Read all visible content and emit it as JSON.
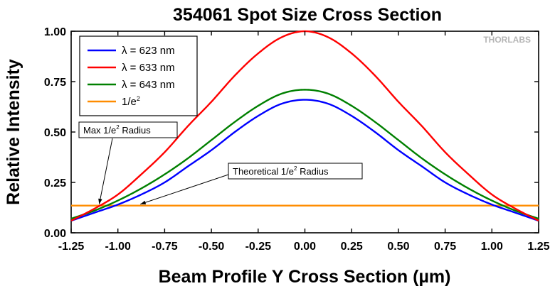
{
  "chart_data": {
    "type": "line",
    "title": "354061 Spot Size Cross Section",
    "xlabel": "Beam Profile Y Cross Section (µm)",
    "ylabel": "Relative Intensity",
    "xlim": [
      -1.25,
      1.25
    ],
    "ylim": [
      0.0,
      1.0
    ],
    "xticks": [
      "-1.25",
      "-1.00",
      "-0.75",
      "-0.50",
      "-0.25",
      "0.00",
      "0.25",
      "0.50",
      "0.75",
      "1.00",
      "1.25"
    ],
    "yticks": [
      "0.00",
      "0.25",
      "0.50",
      "0.75",
      "1.00"
    ],
    "grid": false,
    "legend_position": "top-left",
    "x": [
      -1.25,
      -1.125,
      -1.0,
      -0.875,
      -0.75,
      -0.625,
      -0.5,
      -0.375,
      -0.25,
      -0.125,
      0.0,
      0.125,
      0.25,
      0.375,
      0.5,
      0.625,
      0.75,
      0.875,
      1.0,
      1.125,
      1.25
    ],
    "series": [
      {
        "name": "λ = 623 nm",
        "color": "#0000ff",
        "values": [
          0.06,
          0.1,
          0.14,
          0.19,
          0.25,
          0.33,
          0.41,
          0.5,
          0.58,
          0.64,
          0.66,
          0.64,
          0.58,
          0.5,
          0.41,
          0.33,
          0.25,
          0.19,
          0.14,
          0.1,
          0.06
        ]
      },
      {
        "name": "λ = 633 nm",
        "color": "#ff0000",
        "values": [
          0.06,
          0.12,
          0.19,
          0.29,
          0.4,
          0.53,
          0.65,
          0.78,
          0.89,
          0.97,
          1.0,
          0.97,
          0.89,
          0.78,
          0.65,
          0.53,
          0.4,
          0.29,
          0.19,
          0.12,
          0.06
        ]
      },
      {
        "name": "λ = 643 nm",
        "color": "#008000",
        "values": [
          0.07,
          0.11,
          0.16,
          0.22,
          0.29,
          0.37,
          0.46,
          0.55,
          0.63,
          0.69,
          0.71,
          0.69,
          0.63,
          0.55,
          0.46,
          0.37,
          0.29,
          0.22,
          0.16,
          0.11,
          0.07
        ]
      },
      {
        "name": "1/e²",
        "label_base": "1/e",
        "label_sup": "2",
        "color": "#ff8c00",
        "values": [
          0.135,
          0.135,
          0.135,
          0.135,
          0.135,
          0.135,
          0.135,
          0.135,
          0.135,
          0.135,
          0.135,
          0.135,
          0.135,
          0.135,
          0.135,
          0.135,
          0.135,
          0.135,
          0.135,
          0.135,
          0.135
        ]
      }
    ],
    "annotations": [
      {
        "text_base": "Max 1/e",
        "text_sup": "2",
        "text_after": " Radius",
        "target_x": -1.1,
        "target_y": 0.135
      },
      {
        "text_base": "Theoretical 1/e",
        "text_sup": "2",
        "text_after": " Radius",
        "target_x": -0.88,
        "target_y": 0.135
      }
    ],
    "logo_text": "THORLABS"
  }
}
